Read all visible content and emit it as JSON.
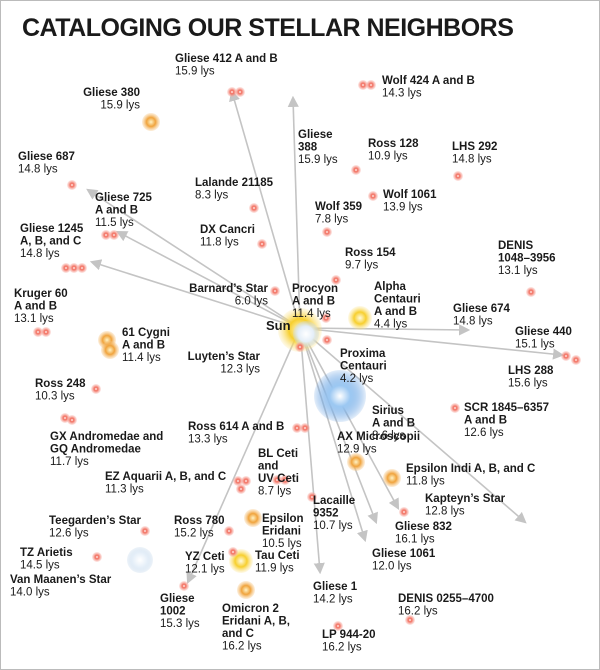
{
  "title": "CATALOGING OUR STELLAR NEIGHBORS",
  "sun": "Sun",
  "stars": [
    {
      "name": [
        "Gliese 412 A and B"
      ],
      "distance": "15.9 lys"
    },
    {
      "name": [
        "Wolf 424 A and B"
      ],
      "distance": "14.3 lys"
    },
    {
      "name": [
        "Gliese 380"
      ],
      "distance": "15.9 lys"
    },
    {
      "name": [
        "Gliese",
        "388"
      ],
      "distance": "15.9 lys"
    },
    {
      "name": [
        "Ross 128"
      ],
      "distance": "10.9 lys"
    },
    {
      "name": [
        "LHS 292"
      ],
      "distance": "14.8 lys"
    },
    {
      "name": [
        "Gliese 687"
      ],
      "distance": "14.8 lys"
    },
    {
      "name": [
        "Lalande 21185"
      ],
      "distance": "8.3 lys"
    },
    {
      "name": [
        "Gliese 725",
        "A and B"
      ],
      "distance": "11.5 lys"
    },
    {
      "name": [
        "Wolf 359"
      ],
      "distance": "7.8 lys"
    },
    {
      "name": [
        "Wolf 1061"
      ],
      "distance": "13.9 lys"
    },
    {
      "name": [
        "DX Cancri"
      ],
      "distance": "11.8 lys"
    },
    {
      "name": [
        "Gliese 1245",
        "A, B, and C"
      ],
      "distance": "14.8 lys"
    },
    {
      "name": [
        "DENIS",
        "1048–3956"
      ],
      "distance": "13.1 lys"
    },
    {
      "name": [
        "Ross 154"
      ],
      "distance": "9.7 lys"
    },
    {
      "name": [
        "Kruger 60",
        "A and B"
      ],
      "distance": "13.1 lys"
    },
    {
      "name": [
        "Barnard’s Star"
      ],
      "distance": "6.0 lys"
    },
    {
      "name": [
        "Procyon",
        "A and B"
      ],
      "distance": "11.4 lys"
    },
    {
      "name": [
        "Alpha",
        "Centauri",
        "A and B"
      ],
      "distance": "4.4 lys"
    },
    {
      "name": [
        "Gliese 674"
      ],
      "distance": "14.8 lys"
    },
    {
      "name": [
        "61 Cygni",
        "A and B"
      ],
      "distance": "11.4 lys"
    },
    {
      "name": [
        "Gliese 440"
      ],
      "distance": "15.1 lys"
    },
    {
      "name": [
        "Luyten’s Star"
      ],
      "distance": "12.3 lys"
    },
    {
      "name": [
        "Proxima",
        "Centauri"
      ],
      "distance": "4.2 lys"
    },
    {
      "name": [
        "LHS 288"
      ],
      "distance": "15.6 lys"
    },
    {
      "name": [
        "Ross 248"
      ],
      "distance": "10.3 lys"
    },
    {
      "name": [
        "Sirius",
        "A and B"
      ],
      "distance": "8.6 lys"
    },
    {
      "name": [
        "SCR 1845–6357",
        "A and B"
      ],
      "distance": "12.6 lys"
    },
    {
      "name": [
        "GX Andromedae and",
        "GQ Andromedae"
      ],
      "distance": "11.7 lys"
    },
    {
      "name": [
        "Ross 614 A and B"
      ],
      "distance": "13.3 lys"
    },
    {
      "name": [
        "AX Microscopii"
      ],
      "distance": "12.9 lys"
    },
    {
      "name": [
        "Epsilon Indi A, B, and C"
      ],
      "distance": "11.8 lys"
    },
    {
      "name": [
        "EZ Aquarii A, B, and C"
      ],
      "distance": "11.3 lys"
    },
    {
      "name": [
        "BL Ceti",
        "and",
        "UV Ceti"
      ],
      "distance": "8.7 lys"
    },
    {
      "name": [
        "Kapteyn’s Star"
      ],
      "distance": "12.8 lys"
    },
    {
      "name": [
        "Lacaille",
        "9352"
      ],
      "distance": "10.7 lys"
    },
    {
      "name": [
        "Epsilon",
        "Eridani"
      ],
      "distance": "10.5 lys"
    },
    {
      "name": [
        "Teegarden’s Star"
      ],
      "distance": "12.6 lys"
    },
    {
      "name": [
        "Gliese 832"
      ],
      "distance": "16.1 lys"
    },
    {
      "name": [
        "Ross 780"
      ],
      "distance": "15.2 lys"
    },
    {
      "name": [
        "Gliese 1061"
      ],
      "distance": "12.0 lys"
    },
    {
      "name": [
        "Tau Ceti"
      ],
      "distance": "11.9 lys"
    },
    {
      "name": [
        "YZ Ceti"
      ],
      "distance": "12.1 lys"
    },
    {
      "name": [
        "TZ Arietis"
      ],
      "distance": "14.5 lys"
    },
    {
      "name": [
        "Van Maanen’s Star"
      ],
      "distance": "14.0 lys"
    },
    {
      "name": [
        "Gliese",
        "1002"
      ],
      "distance": "15.3 lys"
    },
    {
      "name": [
        "Gliese 1"
      ],
      "distance": "14.2 lys"
    },
    {
      "name": [
        "Omicron 2",
        "Eridani A, B,",
        "and C"
      ],
      "distance": "16.2 lys"
    },
    {
      "name": [
        "DENIS 0255–4700"
      ],
      "distance": "16.2 lys"
    },
    {
      "name": [
        "LP 944-20"
      ],
      "distance": "16.2 lys"
    }
  ]
}
